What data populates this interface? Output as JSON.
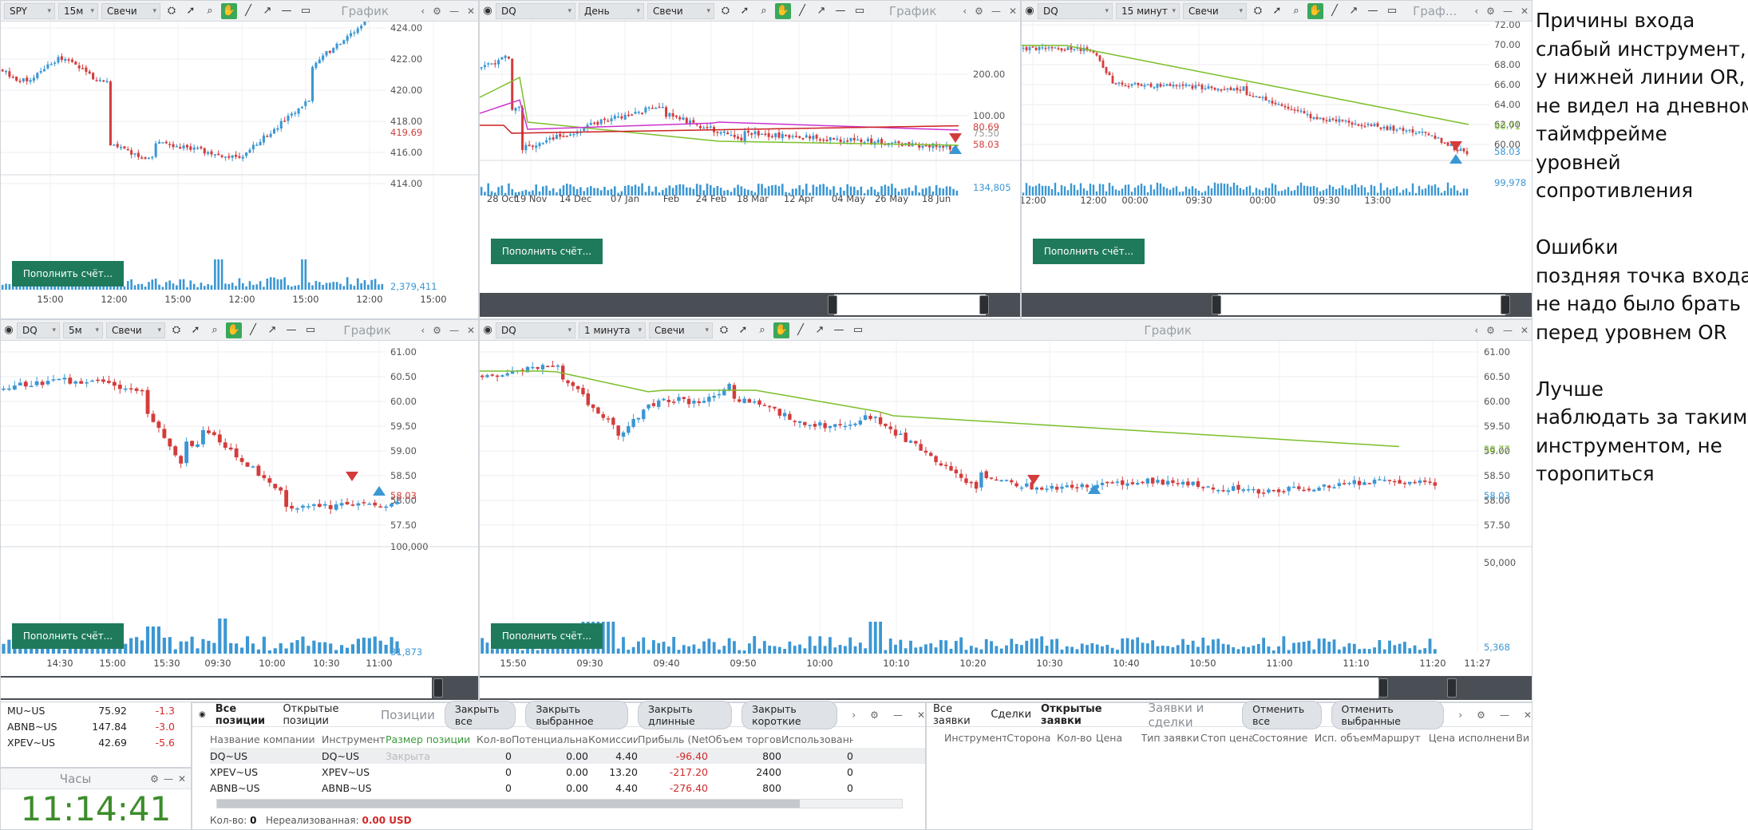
{
  "chart1": {
    "symbol": "SPY",
    "interval": "15м",
    "type": "Свечи",
    "title": "График",
    "price_labels": [
      "424.00",
      "422.00",
      "420.00",
      "418.00",
      "416.00",
      "414.00"
    ],
    "last_price": "419.69",
    "volume": "2,379,411",
    "time_labels": [
      "15:00",
      "12:00",
      "15:00",
      "12:00",
      "15:00",
      "12:00",
      "15:00"
    ],
    "deposit": "Пополнить счёт..."
  },
  "chart2": {
    "symbol": "DQ",
    "interval": "День",
    "type": "Свечи",
    "title": "График",
    "price_labels": [
      "200.00",
      "100.00"
    ],
    "last_prices": [
      "80.69",
      "75.50",
      "58.03"
    ],
    "volume": "134,805",
    "time_labels": [
      "28 Oct",
      "19 Nov",
      "14 Dec",
      "07 Jan",
      "Feb",
      "24 Feb",
      "18 Mar",
      "12 Apr",
      "04 May",
      "26 May",
      "18 Jun"
    ],
    "deposit": "Пополнить счёт..."
  },
  "chart3": {
    "symbol": "DQ",
    "interval": "15 минут",
    "type": "Свечи",
    "title": "Граф...",
    "price_labels": [
      "72.00",
      "70.00",
      "68.00",
      "66.00",
      "64.00",
      "62.00",
      "60.00"
    ],
    "last_prices": [
      "60.71",
      "58.03"
    ],
    "volume": "99,978",
    "time_labels": [
      "12:00",
      "12:00",
      "00:00",
      "09:30",
      "00:00",
      "09:30",
      "13:00"
    ],
    "deposit": "Пополнить счёт..."
  },
  "chart4": {
    "symbol": "DQ",
    "interval": "5м",
    "type": "Свечи",
    "title": "График",
    "price_labels": [
      "61.00",
      "60.50",
      "60.00",
      "59.50",
      "59.00",
      "58.50",
      "58.00",
      "57.50"
    ],
    "last_price": "58.03",
    "vol_labels": [
      "100,000",
      "31,873"
    ],
    "time_labels": [
      "14:30",
      "15:00",
      "15:30",
      "09:30",
      "10:00",
      "10:30",
      "11:00"
    ],
    "deposit": "Пополнить счёт..."
  },
  "chart5": {
    "symbol": "DQ",
    "interval": "1 минута",
    "type": "Свечи",
    "title": "График",
    "price_labels": [
      "61.00",
      "60.50",
      "60.00",
      "59.50",
      "59.00",
      "58.50",
      "58.00",
      "57.50"
    ],
    "ema_price": "58.77",
    "last_price": "58.03",
    "vol_labels": [
      "50,000",
      "5,368"
    ],
    "time_labels": [
      "15:50",
      "09:30",
      "09:40",
      "09:50",
      "10:00",
      "10:10",
      "10:20",
      "10:30",
      "10:40",
      "10:50",
      "11:00",
      "11:10",
      "11:20",
      "11:27"
    ],
    "deposit": "Пополнить счёт..."
  },
  "watchlist": [
    {
      "sym": "MU~US",
      "price": "75.92",
      "chg": "-1.3"
    },
    {
      "sym": "ABNB~US",
      "price": "147.84",
      "chg": "-3.0"
    },
    {
      "sym": "XPEV~US",
      "price": "42.69",
      "chg": "-5.6"
    }
  ],
  "clock": {
    "title": "Часы",
    "time": "11:14:41"
  },
  "positions": {
    "tabs": [
      "Все позиции",
      "Открытые позиции"
    ],
    "title": "Позиции",
    "buttons": [
      "Закрыть все",
      "Закрыть выбранное",
      "Закрыть длинные",
      "Закрыть короткие"
    ],
    "columns": [
      "Название компании",
      "Инструмент",
      "Размер позиции ▲",
      "Кол-во",
      "Потенциальная",
      "Комиссии",
      "Прибыль (Net)",
      "Объем торгов",
      "Использованна"
    ],
    "rows": [
      [
        "DQ~US",
        "DQ~US",
        "Закрыта",
        "0",
        "0.00",
        "4.40",
        "-96.40",
        "800",
        "0"
      ],
      [
        "XPEV~US",
        "XPEV~US",
        "",
        "0",
        "0.00",
        "13.20",
        "-217.20",
        "2400",
        "0"
      ],
      [
        "ABNB~US",
        "ABNB~US",
        "",
        "0",
        "0.00",
        "4.40",
        "-276.40",
        "800",
        "0"
      ]
    ],
    "footer_qty_label": "Кол-во:",
    "footer_qty": "0",
    "footer_unreal_label": "Нереализованная:",
    "footer_unreal": "0.00 USD"
  },
  "orders": {
    "tabs": [
      "Все заявки",
      "Сделки",
      "Открытые заявки"
    ],
    "title": "Заявки и сделки",
    "buttons": [
      "Отменить все",
      "Отменить выбранные"
    ],
    "columns": [
      "Инструмент",
      "Сторона",
      "Кол-во",
      "Цена",
      "Тип заявки",
      "Стоп цена",
      "Состояние",
      "Исп. объем",
      "Маршрут",
      "Цена исполнения",
      "Ви"
    ]
  },
  "notes": [
    "Причины входа",
    "слабый инструмент,",
    "у нижней линии OR,",
    "не видел на дневном",
    "таймфрейме",
    "уровней",
    "сопротивления",
    "",
    "Ошибки",
    "поздняя точка входа,",
    "не надо было брать",
    "перед уровнем OR",
    "",
    "Лучше",
    "наблюдать за таким",
    "инструментом, не",
    "торопиться"
  ],
  "colors": {
    "up": "#3b97d3",
    "down": "#d43c3c",
    "ema": "#7cbf2c",
    "deposit": "#1f7a5c",
    "clock": "#3d8c2b"
  }
}
